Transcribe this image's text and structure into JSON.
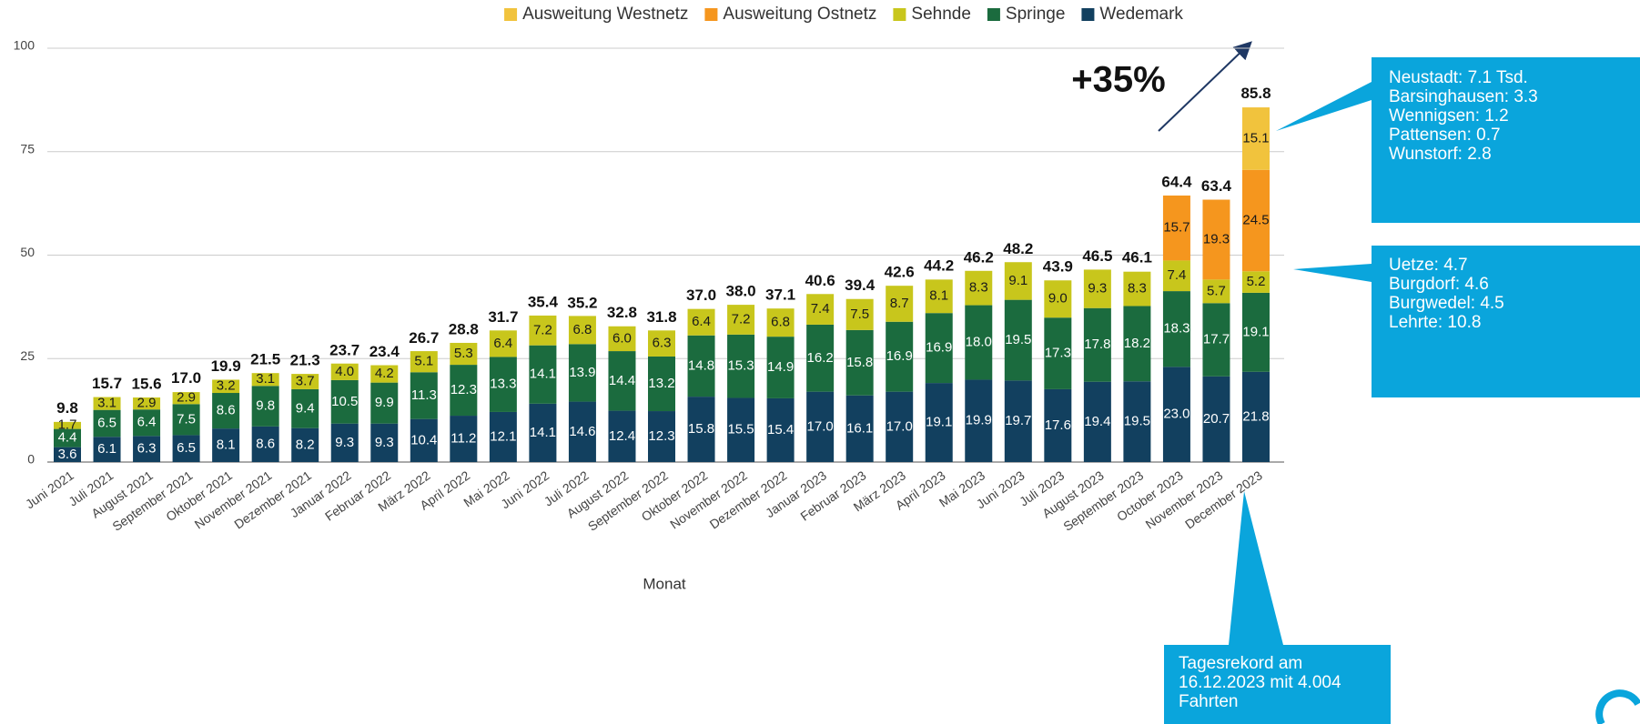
{
  "chart_data": {
    "type": "stacked_bar",
    "x_label": "Monat",
    "categories": [
      "Juni 2021",
      "Juli 2021",
      "August 2021",
      "September 2021",
      "Oktober 2021",
      "November 2021",
      "Dezember 2021",
      "Januar 2022",
      "Februar 2022",
      "März 2022",
      "April 2022",
      "Mai 2022",
      "Juni 2022",
      "Juli 2022",
      "August 2022",
      "September 2022",
      "Oktober 2022",
      "November 2022",
      "Dezember 2022",
      "Januar 2023",
      "Februar 2023",
      "März 2023",
      "April 2023",
      "Mai 2023",
      "Juni 2023",
      "Juli 2023",
      "August 2023",
      "September 2023",
      "October 2023",
      "November 2023",
      "December 2023"
    ],
    "series": [
      {
        "name": "Wedemark",
        "color": "#12405f",
        "label_color": "#ffffff",
        "values": [
          3.6,
          6.1,
          6.3,
          6.5,
          8.1,
          8.6,
          8.2,
          9.3,
          9.3,
          10.4,
          11.2,
          12.1,
          14.1,
          14.6,
          12.4,
          12.3,
          15.8,
          15.5,
          15.4,
          17.0,
          16.1,
          17.0,
          19.1,
          19.9,
          19.7,
          17.6,
          19.4,
          19.5,
          23.0,
          20.7,
          21.8
        ],
        "value_labels": [
          "3.6",
          "6.1",
          "6.3",
          "6.5",
          "8.1",
          "8.6",
          "8.2",
          "9.3",
          "9.3",
          "10.4",
          "11.2",
          "12.1",
          "14.1",
          "14.6",
          "12.4",
          "12.3",
          "15.8",
          "15.5",
          "15.4",
          "17.0",
          "16.1",
          "17.0",
          "19.1",
          "19.9",
          "19.7",
          "17.6",
          "19.4",
          "19.5",
          "23.0",
          "20.7",
          "21.8"
        ]
      },
      {
        "name": "Springe",
        "color": "#1b6b3e",
        "label_color": "#ffffff",
        "values": [
          4.4,
          6.5,
          6.4,
          7.5,
          8.6,
          9.8,
          9.4,
          10.5,
          9.9,
          11.3,
          12.3,
          13.3,
          14.1,
          13.9,
          14.4,
          13.2,
          14.8,
          15.3,
          14.9,
          16.2,
          15.8,
          16.9,
          16.9,
          18.0,
          19.5,
          17.3,
          17.8,
          18.2,
          18.3,
          17.7,
          19.1
        ],
        "value_labels": [
          "4.4",
          "6.5",
          "6.4",
          "7.5",
          "8.6",
          "9.8",
          "9.4",
          "10.5",
          "9.9",
          "11.3",
          "12.3",
          "13.3",
          "14.1",
          "13.9",
          "14.4",
          "13.2",
          "14.8",
          "15.3",
          "14.9",
          "16.2",
          "15.8",
          "16.9",
          "16.9",
          "18.0",
          "19.5",
          "17.3",
          "17.8",
          "18.2",
          "18.3",
          "17.7",
          "19.1"
        ]
      },
      {
        "name": "Sehnde",
        "color": "#c8c61c",
        "label_color": "#1a1a1a",
        "values": [
          1.7,
          3.1,
          2.9,
          2.9,
          3.2,
          3.1,
          3.7,
          4.0,
          4.2,
          5.1,
          5.3,
          6.4,
          7.2,
          6.8,
          6.0,
          6.3,
          6.4,
          7.2,
          6.8,
          7.4,
          7.5,
          8.7,
          8.1,
          8.3,
          9.1,
          9.0,
          9.3,
          8.3,
          7.4,
          5.7,
          5.2
        ],
        "value_labels": [
          "1.7",
          "3.1",
          "2.9",
          "2.9",
          "3.2",
          "3.1",
          "3.7",
          "4.0",
          "4.2",
          "5.1",
          "5.3",
          "6.4",
          "7.2",
          "6.8",
          "6.0",
          "6.3",
          "6.4",
          "7.2",
          "6.8",
          "7.4",
          "7.5",
          "8.7",
          "8.1",
          "8.3",
          "9.1",
          "9.0",
          "9.3",
          "8.3",
          "7.4",
          "5.7",
          "5.2"
        ]
      },
      {
        "name": "Ausweitung Ostnetz",
        "color": "#f5961e",
        "label_color": "#1a1a1a",
        "values": [
          null,
          null,
          null,
          null,
          null,
          null,
          null,
          null,
          null,
          null,
          null,
          null,
          null,
          null,
          null,
          null,
          null,
          null,
          null,
          null,
          null,
          null,
          null,
          null,
          null,
          null,
          null,
          null,
          15.7,
          19.3,
          24.5
        ],
        "value_labels": [
          null,
          null,
          null,
          null,
          null,
          null,
          null,
          null,
          null,
          null,
          null,
          null,
          null,
          null,
          null,
          null,
          null,
          null,
          null,
          null,
          null,
          null,
          null,
          null,
          null,
          null,
          null,
          null,
          "15.7",
          "19.3",
          "24.5"
        ]
      },
      {
        "name": "Ausweitung Westnetz",
        "color": "#f1c33d",
        "label_color": "#1a1a1a",
        "values": [
          null,
          null,
          null,
          null,
          null,
          null,
          null,
          null,
          null,
          null,
          null,
          null,
          null,
          null,
          null,
          null,
          null,
          null,
          null,
          null,
          null,
          null,
          null,
          null,
          null,
          null,
          null,
          null,
          null,
          null,
          15.1
        ],
        "value_labels": [
          null,
          null,
          null,
          null,
          null,
          null,
          null,
          null,
          null,
          null,
          null,
          null,
          null,
          null,
          null,
          null,
          null,
          null,
          null,
          null,
          null,
          null,
          null,
          null,
          null,
          null,
          null,
          null,
          null,
          null,
          "15.1"
        ]
      }
    ],
    "totals": [
      9.8,
      15.7,
      15.6,
      17.0,
      19.9,
      21.5,
      21.3,
      23.7,
      23.4,
      26.7,
      28.8,
      31.7,
      35.4,
      35.2,
      32.8,
      31.8,
      37.0,
      38.0,
      37.1,
      40.6,
      39.4,
      42.6,
      44.2,
      46.2,
      48.2,
      43.9,
      46.5,
      46.1,
      64.4,
      63.4,
      85.8
    ],
    "total_labels": [
      "9.8",
      "15.7",
      "15.6",
      "17.0",
      "19.9",
      "21.5",
      "21.3",
      "23.7",
      "23.4",
      "26.7",
      "28.8",
      "31.7",
      "35.4",
      "35.2",
      "32.8",
      "31.8",
      "37.0",
      "38.0",
      "37.1",
      "40.6",
      "39.4",
      "42.6",
      "44.2",
      "46.2",
      "48.2",
      "43.9",
      "46.5",
      "46.1",
      "64.4",
      "63.4",
      "85.8"
    ],
    "ylim": [
      0,
      100
    ],
    "yticks": [
      0,
      25,
      50,
      75,
      100
    ],
    "grid": true,
    "legend_order": [
      4,
      3,
      2,
      1,
      0
    ],
    "annotation": "+35%",
    "callouts": [
      {
        "lines": [
          "Neustadt: 7.1 Tsd.",
          "Barsinghausen: 3.3",
          "Wennigsen: 1.2",
          "Pattensen: 0.7",
          "Wunstorf: 2.8"
        ]
      },
      {
        "lines": [
          "Uetze: 4.7",
          "Burgdorf: 4.6",
          "Burgwedel: 4.5",
          "Lehrte: 10.8"
        ]
      },
      {
        "lines": [
          "Tagesrekord am",
          "16.12.2023 mit 4.004",
          "Fahrten"
        ]
      }
    ]
  }
}
